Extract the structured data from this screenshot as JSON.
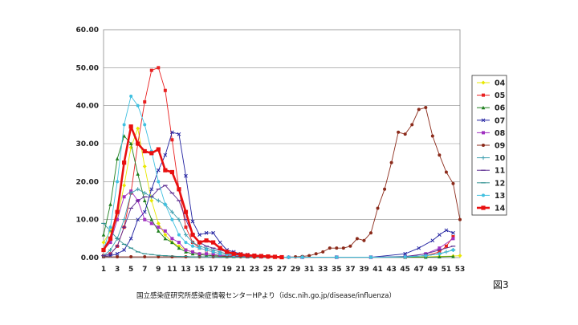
{
  "figure_label": "図3",
  "source_note": "国立感染症研究所感染症情報センターHPより（idsc.nih.go.jp/disease/influenza）",
  "chart_data": {
    "type": "line",
    "title": "",
    "xlabel": "",
    "ylabel": "",
    "ylim": [
      0,
      60
    ],
    "yticks": [
      "0.00",
      "10.00",
      "20.00",
      "30.00",
      "40.00",
      "50.00",
      "60.00"
    ],
    "xlim": [
      1,
      53
    ],
    "xticks": [
      1,
      3,
      5,
      7,
      9,
      11,
      13,
      15,
      17,
      19,
      21,
      23,
      25,
      27,
      29,
      31,
      33,
      35,
      37,
      39,
      41,
      43,
      45,
      47,
      49,
      51,
      53
    ],
    "grid": "horizontal",
    "legend_position": "right",
    "series": [
      {
        "name": "04",
        "color": "#e8e800",
        "marker": "diamond",
        "x": [
          1,
          2,
          3,
          4,
          5,
          6,
          7,
          8,
          9,
          10,
          11,
          12,
          13,
          14,
          15,
          16,
          17,
          18,
          19,
          20,
          22,
          24,
          26,
          28,
          30,
          35,
          40,
          45,
          48,
          50,
          52,
          53
        ],
        "values": [
          4,
          7,
          10,
          19,
          29,
          34,
          24,
          15,
          9,
          6,
          4,
          3,
          2,
          1.5,
          1,
          1,
          0.8,
          0.6,
          0.5,
          0.4,
          0.3,
          0.2,
          0.1,
          0.1,
          0.1,
          0.1,
          0.1,
          0.1,
          0.2,
          0.3,
          0.4,
          0.5
        ]
      },
      {
        "name": "05",
        "color": "#e82020",
        "marker": "square",
        "x": [
          1,
          2,
          3,
          4,
          5,
          6,
          7,
          8,
          9,
          10,
          11,
          12,
          13,
          14,
          15,
          16,
          17,
          18,
          19,
          20,
          21,
          22,
          23,
          24,
          25,
          26,
          27,
          30,
          35,
          40,
          45,
          48,
          50,
          51,
          52
        ],
        "values": [
          0.5,
          1,
          3,
          8,
          17,
          30,
          41,
          49.3,
          50,
          44,
          31,
          18,
          8,
          4,
          2.5,
          2,
          1.5,
          1,
          0.8,
          0.6,
          0.5,
          0.4,
          0.3,
          0.2,
          0.2,
          0.1,
          0.1,
          0.1,
          0.1,
          0.1,
          0.2,
          0.5,
          1.5,
          3,
          5.5
        ]
      },
      {
        "name": "06",
        "color": "#208020",
        "marker": "triangle",
        "x": [
          1,
          2,
          3,
          4,
          5,
          6,
          7,
          8,
          9,
          10,
          11,
          12,
          13,
          14,
          15,
          16,
          17,
          18,
          19,
          20,
          22,
          24,
          26,
          28,
          30,
          35,
          40,
          45,
          48,
          50,
          52
        ],
        "values": [
          6,
          14,
          26,
          32,
          30,
          22,
          15,
          10,
          7,
          5,
          4,
          2.5,
          1.5,
          1,
          0.8,
          0.6,
          0.5,
          0.4,
          0.3,
          0.3,
          0.2,
          0.2,
          0.1,
          0.1,
          0.1,
          0.1,
          0.1,
          0.1,
          0.1,
          0.2,
          0.3
        ]
      },
      {
        "name": "07",
        "color": "#2020a0",
        "marker": "x",
        "x": [
          1,
          2,
          3,
          4,
          5,
          6,
          7,
          8,
          9,
          10,
          11,
          12,
          13,
          14,
          15,
          16,
          17,
          18,
          19,
          20,
          21,
          22,
          23,
          24,
          25,
          26,
          27,
          30,
          35,
          40,
          45,
          47,
          49,
          50,
          51,
          52
        ],
        "values": [
          0.3,
          0.5,
          1,
          2,
          5,
          10,
          12,
          18,
          23,
          27,
          33,
          32.5,
          21.5,
          9.5,
          6,
          6.5,
          6.5,
          4,
          2,
          1.5,
          1,
          0.8,
          0.6,
          0.5,
          0.3,
          0.2,
          0.1,
          0.1,
          0.1,
          0.1,
          1,
          2.5,
          4.5,
          6,
          7.2,
          6.5
        ]
      },
      {
        "name": "08",
        "color": "#a030c0",
        "marker": "square",
        "x": [
          1,
          2,
          3,
          4,
          5,
          6,
          7,
          8,
          9,
          10,
          11,
          12,
          13,
          14,
          15,
          16,
          17,
          18,
          19,
          20,
          22,
          24,
          26,
          28,
          30,
          35,
          40,
          45,
          48,
          50,
          52
        ],
        "values": [
          2,
          4,
          10,
          16,
          17.5,
          15,
          10,
          9,
          8,
          7,
          5,
          4,
          2,
          1.5,
          1,
          1,
          0.8,
          0.6,
          0.5,
          0.4,
          0.3,
          0.2,
          0.1,
          0.1,
          0.1,
          0.1,
          0.1,
          0.2,
          1,
          2.5,
          5
        ]
      },
      {
        "name": "09",
        "color": "#8b2a1a",
        "marker": "circle",
        "x": [
          1,
          3,
          5,
          7,
          9,
          11,
          13,
          15,
          17,
          19,
          21,
          23,
          25,
          27,
          29,
          30,
          31,
          32,
          33,
          34,
          35,
          36,
          37,
          38,
          39,
          40,
          41,
          42,
          43,
          44,
          45,
          46,
          47,
          48,
          49,
          50,
          51,
          52,
          53
        ],
        "values": [
          0.2,
          0.2,
          0.2,
          0.2,
          0.2,
          0.2,
          0.2,
          0.2,
          0.2,
          0.2,
          0.2,
          0.1,
          0.1,
          0.1,
          0.2,
          0.3,
          0.5,
          1,
          1.5,
          2.5,
          2.5,
          2.5,
          3,
          5,
          4.5,
          6.5,
          13,
          18,
          25,
          33,
          32.5,
          35,
          39,
          39.5,
          32,
          27,
          22.5,
          19.5,
          10
        ]
      },
      {
        "name": "10",
        "color": "#40a0b0",
        "marker": "plus",
        "x": [
          1,
          2,
          3,
          4,
          5,
          6,
          7,
          8,
          9,
          10,
          11,
          12,
          13,
          14,
          15,
          16,
          17,
          18,
          19,
          20,
          22,
          24,
          26,
          28,
          30,
          35,
          40,
          45,
          48,
          50,
          51,
          52
        ],
        "values": [
          0.5,
          2,
          5,
          10,
          17,
          18,
          17,
          16,
          15,
          14,
          12,
          10,
          6,
          4,
          3,
          2.5,
          2,
          1.5,
          1,
          0.8,
          0.5,
          0.3,
          0.2,
          0.1,
          0.1,
          0.1,
          0.1,
          0.2,
          0.5,
          1,
          1.5,
          2
        ]
      },
      {
        "name": "11",
        "color": "#5a2a90",
        "marker": "dash",
        "x": [
          1,
          2,
          3,
          4,
          5,
          6,
          7,
          8,
          9,
          10,
          11,
          12,
          13,
          14,
          15,
          16,
          17,
          18,
          19,
          20,
          22,
          24,
          26,
          28,
          30,
          35,
          40,
          45,
          48,
          50,
          52
        ],
        "values": [
          0.5,
          1,
          3,
          8,
          13,
          15,
          16,
          16,
          18,
          19,
          17,
          15,
          10,
          6,
          4,
          3,
          2.5,
          2,
          1.5,
          1,
          0.6,
          0.4,
          0.2,
          0.1,
          0.1,
          0.1,
          0.1,
          0.3,
          1,
          2,
          3
        ]
      },
      {
        "name": "12",
        "color": "#309090",
        "marker": "dash",
        "x": [
          1,
          2,
          3,
          4,
          5,
          6,
          7,
          8,
          9,
          10,
          11,
          12,
          13,
          14,
          15,
          16,
          17,
          18,
          19,
          20,
          22,
          24,
          26,
          28,
          30,
          35,
          40,
          45,
          48,
          50,
          52
        ],
        "values": [
          9,
          7,
          5,
          3.5,
          2.5,
          1.5,
          1,
          0.8,
          0.6,
          0.5,
          0.4,
          0.3,
          0.3,
          0.2,
          0.2,
          0.2,
          0.2,
          0.1,
          0.1,
          0.1,
          0.1,
          0.1,
          0.1,
          0.1,
          0.1,
          0.1,
          0.1,
          0.2,
          0.5,
          1,
          2
        ]
      },
      {
        "name": "13",
        "color": "#40c0e0",
        "marker": "circle",
        "x": [
          1,
          2,
          3,
          4,
          5,
          6,
          7,
          8,
          9,
          10,
          11,
          12,
          13,
          14,
          15,
          16,
          17,
          18,
          19,
          20,
          22,
          24,
          26,
          28,
          30,
          35,
          40,
          45,
          48,
          50,
          52
        ],
        "values": [
          2,
          8,
          20,
          35,
          42.5,
          40,
          35,
          28,
          20,
          14,
          10,
          6,
          4,
          3,
          2.5,
          2,
          1.5,
          1,
          0.8,
          0.6,
          0.4,
          0.3,
          0.2,
          0.1,
          0.1,
          0.1,
          0.1,
          0.2,
          0.5,
          1,
          2
        ]
      },
      {
        "name": "14",
        "color": "#e81010",
        "marker": "square",
        "thick": true,
        "x": [
          1,
          2,
          3,
          4,
          5,
          6,
          7,
          8,
          9,
          10,
          11,
          12,
          13,
          14,
          15,
          16,
          17,
          18,
          19,
          20,
          21,
          22,
          23,
          24,
          25,
          26,
          27
        ],
        "values": [
          2,
          5,
          12,
          25,
          34.5,
          30,
          28,
          27.5,
          28.5,
          23,
          22.5,
          18,
          12,
          6,
          4,
          4.5,
          4,
          2.5,
          1.5,
          1,
          0.8,
          0.6,
          0.5,
          0.4,
          0.3,
          0.2,
          0.1
        ]
      }
    ]
  }
}
